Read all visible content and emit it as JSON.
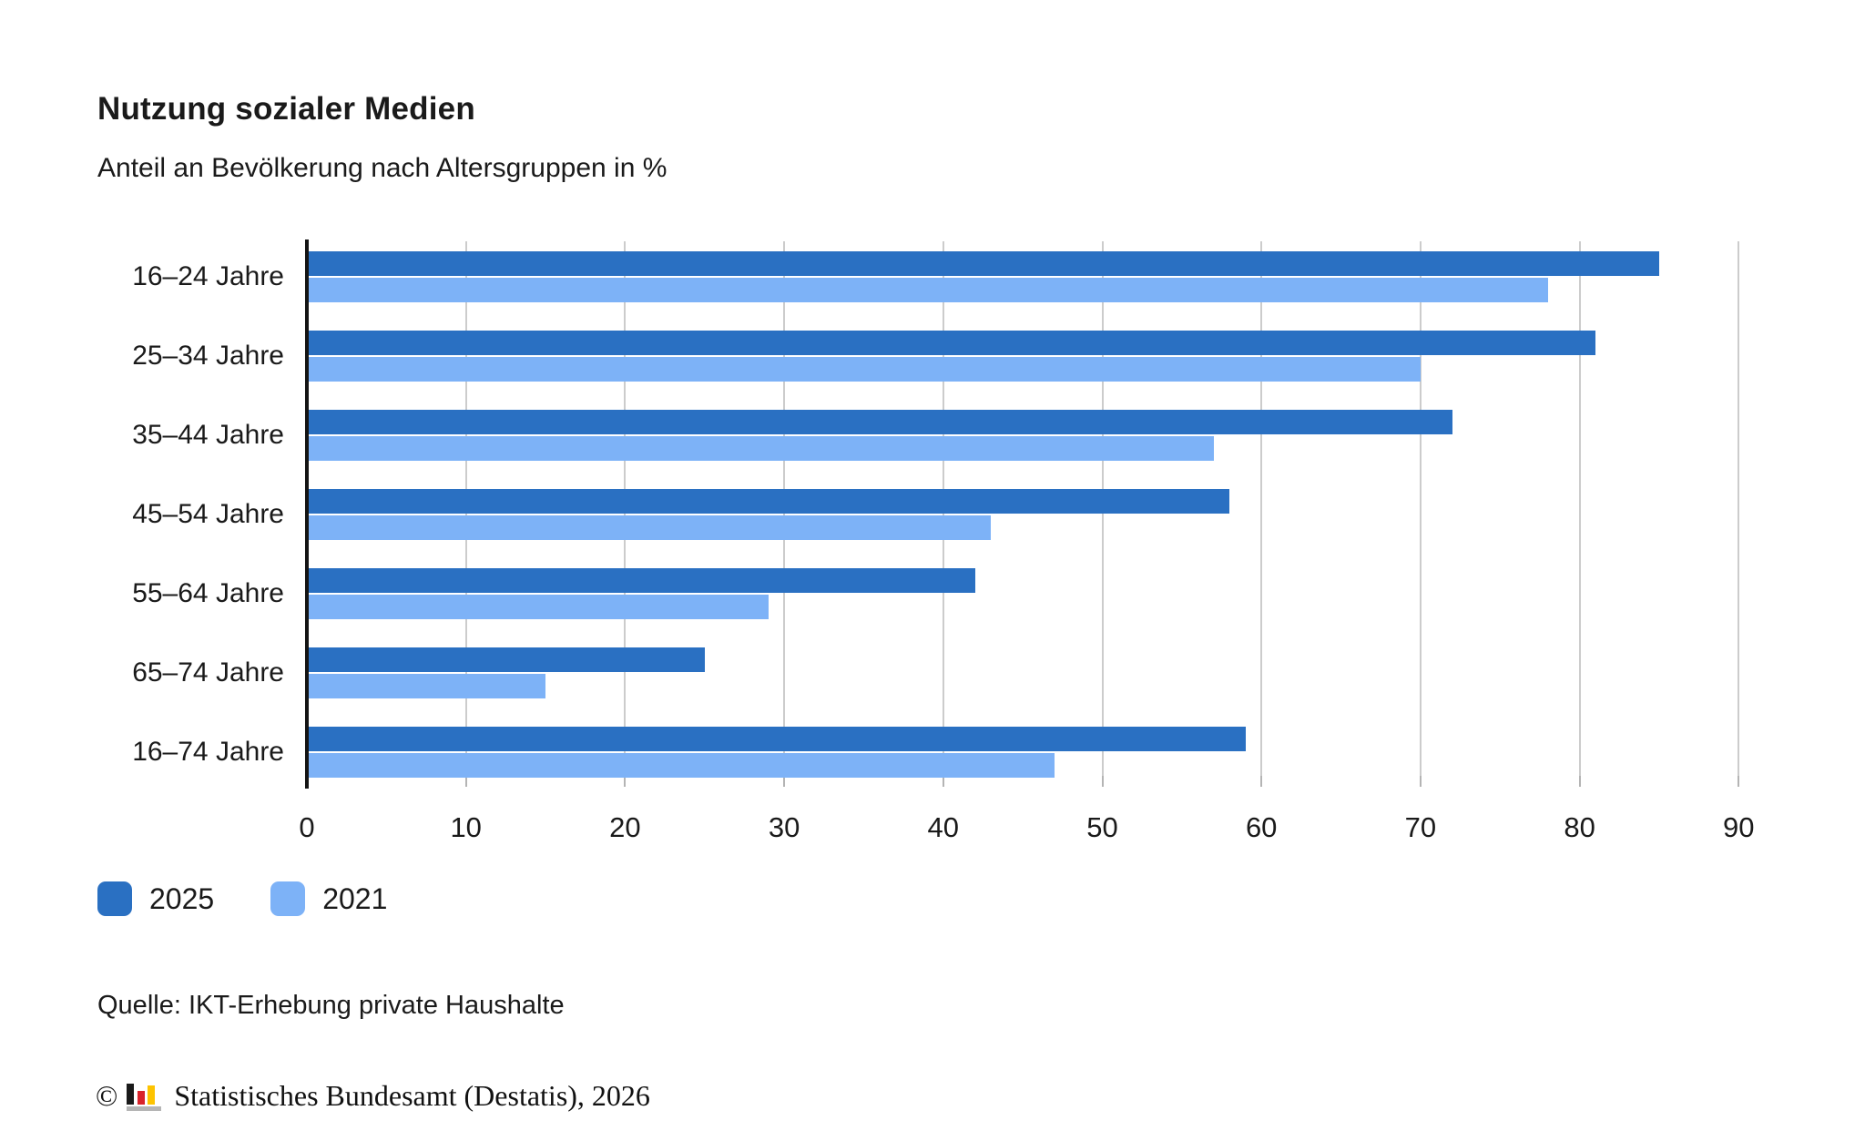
{
  "header": {
    "title": "Nutzung sozialer Medien",
    "subtitle": "Anteil an Bevölkerung nach Altersgruppen in %"
  },
  "chart_data": {
    "type": "bar",
    "orientation": "horizontal",
    "title": "Nutzung sozialer Medien",
    "subtitle": "Anteil an Bevölkerung nach Altersgruppen in %",
    "value_unit": "%",
    "categories": [
      "16–24 Jahre",
      "25–34 Jahre",
      "35–44 Jahre",
      "45–54 Jahre",
      "55–64 Jahre",
      "65–74 Jahre",
      "16–74 Jahre"
    ],
    "series": [
      {
        "name": "2025",
        "color": "#2a70c2",
        "values": [
          85,
          81,
          72,
          58,
          42,
          25,
          59
        ]
      },
      {
        "name": "2021",
        "color": "#7db2f7",
        "values": [
          78,
          70,
          57,
          43,
          29,
          15,
          47
        ]
      }
    ],
    "xlabel": "",
    "ylabel": "",
    "xlim": [
      0,
      93
    ],
    "xticks": [
      0,
      10,
      20,
      30,
      40,
      50,
      60,
      70,
      80,
      90
    ],
    "grid": true,
    "legend_position": "bottom-left"
  },
  "legend": {
    "items": [
      {
        "label": "2025",
        "color": "#2a70c2"
      },
      {
        "label": "2021",
        "color": "#7db2f7"
      }
    ]
  },
  "footer": {
    "source": "Quelle: IKT-Erhebung private Haushalte",
    "copyright_symbol": "©",
    "copyright_text": "Statistisches Bundesamt (Destatis), 2026",
    "logo_icon": "destatis-bar-chart-logo"
  },
  "colors": {
    "bar_2025": "#2a70c2",
    "bar_2021": "#7db2f7",
    "grid": "#cccccc",
    "axis": "#141414",
    "text": "#1a1a1a"
  }
}
